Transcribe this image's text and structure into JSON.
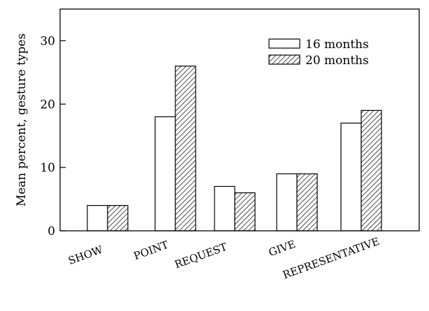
{
  "chart_data": {
    "type": "bar",
    "categories": [
      "SHOW",
      "POINT",
      "REQUEST",
      "GIVE",
      "REPRESENTATIVE"
    ],
    "series": [
      {
        "name": "16 months",
        "values": [
          4,
          18,
          7,
          9,
          17
        ],
        "pattern": "plain"
      },
      {
        "name": "20 months",
        "values": [
          4,
          26,
          6,
          9,
          19
        ],
        "pattern": "hatched"
      }
    ],
    "ylabel": "Mean percent, gesture types",
    "xlabel": "",
    "ylim": [
      0,
      35
    ],
    "yticks": [
      0,
      10,
      20,
      30
    ],
    "legend_position": "top-right",
    "grid": false,
    "colors": {
      "bar_fill": "#ffffff",
      "stroke": "#000000",
      "hatch": "#000000"
    }
  }
}
